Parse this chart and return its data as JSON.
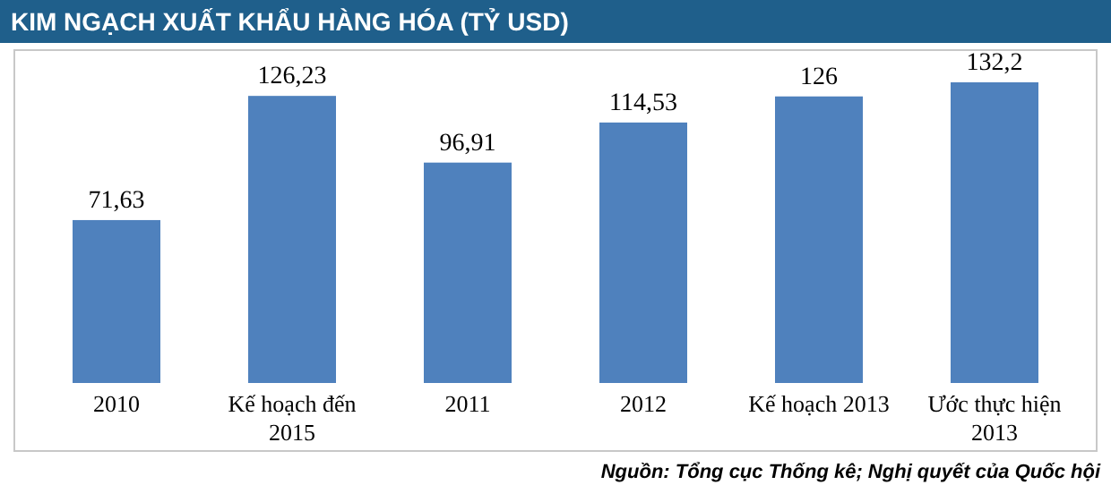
{
  "chart_data": {
    "type": "bar",
    "title": "KIM NGẠCH XUẤT KHẨU HÀNG HÓA (TỶ USD)",
    "categories": [
      "2010",
      "Kế hoạch đến 2015",
      "2011",
      "2012",
      "Kế hoạch 2013",
      "Ước thực hiện 2013"
    ],
    "values": [
      71.63,
      126.23,
      96.91,
      114.53,
      126,
      132.2
    ],
    "value_labels": [
      "71,63",
      "126,23",
      "96,91",
      "114,53",
      "126",
      "132,2"
    ],
    "color": "#4f81bd",
    "annotations": [
      "Nguồn: Tổng cục Thống kê; Nghị quyết của Quốc hội"
    ]
  }
}
